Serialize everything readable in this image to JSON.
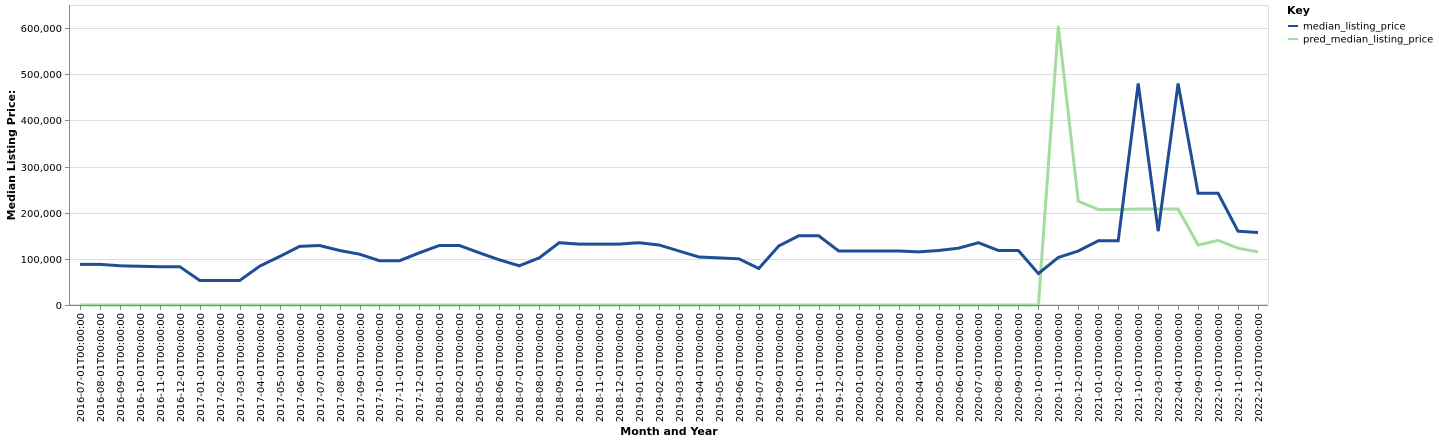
{
  "chart_data": {
    "type": "line",
    "xlabel": "Month and Year",
    "ylabel": "Median Listing Price:",
    "ylim": [
      0,
      650000
    ],
    "y_ticks": [
      0,
      100000,
      200000,
      300000,
      400000,
      500000,
      600000
    ],
    "y_tick_labels": [
      "0",
      "100,000",
      "200,000",
      "300,000",
      "400,000",
      "500,000",
      "600,000"
    ],
    "grid": true,
    "legend": {
      "title": "Key",
      "position": "top-right"
    },
    "categories": [
      "2016-07-01T00:00:00",
      "2016-08-01T00:00:00",
      "2016-09-01T00:00:00",
      "2016-10-01T00:00:00",
      "2016-11-01T00:00:00",
      "2016-12-01T00:00:00",
      "2017-01-01T00:00:00",
      "2017-02-01T00:00:00",
      "2017-03-01T00:00:00",
      "2017-04-01T00:00:00",
      "2017-05-01T00:00:00",
      "2017-06-01T00:00:00",
      "2017-07-01T00:00:00",
      "2017-08-01T00:00:00",
      "2017-09-01T00:00:00",
      "2017-10-01T00:00:00",
      "2017-11-01T00:00:00",
      "2017-12-01T00:00:00",
      "2018-01-01T00:00:00",
      "2018-02-01T00:00:00",
      "2018-05-01T00:00:00",
      "2018-06-01T00:00:00",
      "2018-07-01T00:00:00",
      "2018-08-01T00:00:00",
      "2018-09-01T00:00:00",
      "2018-10-01T00:00:00",
      "2018-11-01T00:00:00",
      "2018-12-01T00:00:00",
      "2019-01-01T00:00:00",
      "2019-02-01T00:00:00",
      "2019-03-01T00:00:00",
      "2019-04-01T00:00:00",
      "2019-05-01T00:00:00",
      "2019-06-01T00:00:00",
      "2019-07-01T00:00:00",
      "2019-09-01T00:00:00",
      "2019-10-01T00:00:00",
      "2019-11-01T00:00:00",
      "2019-12-01T00:00:00",
      "2020-01-01T00:00:00",
      "2020-02-01T00:00:00",
      "2020-03-01T00:00:00",
      "2020-04-01T00:00:00",
      "2020-05-01T00:00:00",
      "2020-06-01T00:00:00",
      "2020-07-01T00:00:00",
      "2020-08-01T00:00:00",
      "2020-09-01T00:00:00",
      "2020-10-01T00:00:00",
      "2020-11-01T00:00:00",
      "2020-12-01T00:00:00",
      "2021-01-01T00:00:00",
      "2021-02-01T00:00:00",
      "2021-10-01T00:00:00",
      "2022-03-01T00:00:00",
      "2022-04-01T00:00:00",
      "2022-09-01T00:00:00",
      "2022-10-01T00:00:00",
      "2022-11-01T00:00:00",
      "2022-12-01T00:00:00"
    ],
    "series": [
      {
        "name": "median_listing_price",
        "color": "#1f4e96",
        "values": [
          88000,
          88000,
          85000,
          84000,
          83000,
          83000,
          53000,
          53000,
          53000,
          84000,
          105000,
          127000,
          129000,
          118000,
          110000,
          96000,
          96000,
          113000,
          129000,
          129000,
          113000,
          98000,
          85000,
          102000,
          135000,
          132000,
          132000,
          132000,
          135000,
          130000,
          117000,
          104000,
          102000,
          100000,
          79000,
          128000,
          150000,
          150000,
          117000,
          117000,
          117000,
          117000,
          115000,
          118000,
          123000,
          135000,
          118000,
          118000,
          68000,
          103000,
          117000,
          139000,
          139000,
          480000,
          160000,
          480000,
          242000,
          242000,
          160000,
          157000
        ]
      },
      {
        "name": "pred_median_listing_price",
        "color": "#a4dca0",
        "values": [
          0,
          0,
          0,
          0,
          0,
          0,
          0,
          0,
          0,
          0,
          0,
          0,
          0,
          0,
          0,
          0,
          0,
          0,
          0,
          0,
          0,
          0,
          0,
          0,
          0,
          0,
          0,
          0,
          0,
          0,
          0,
          0,
          0,
          0,
          0,
          0,
          0,
          0,
          0,
          0,
          0,
          0,
          0,
          0,
          0,
          0,
          0,
          0,
          0,
          605000,
          225000,
          207000,
          207000,
          208000,
          208000,
          208000,
          130000,
          140000,
          123000,
          115000
        ]
      }
    ]
  }
}
